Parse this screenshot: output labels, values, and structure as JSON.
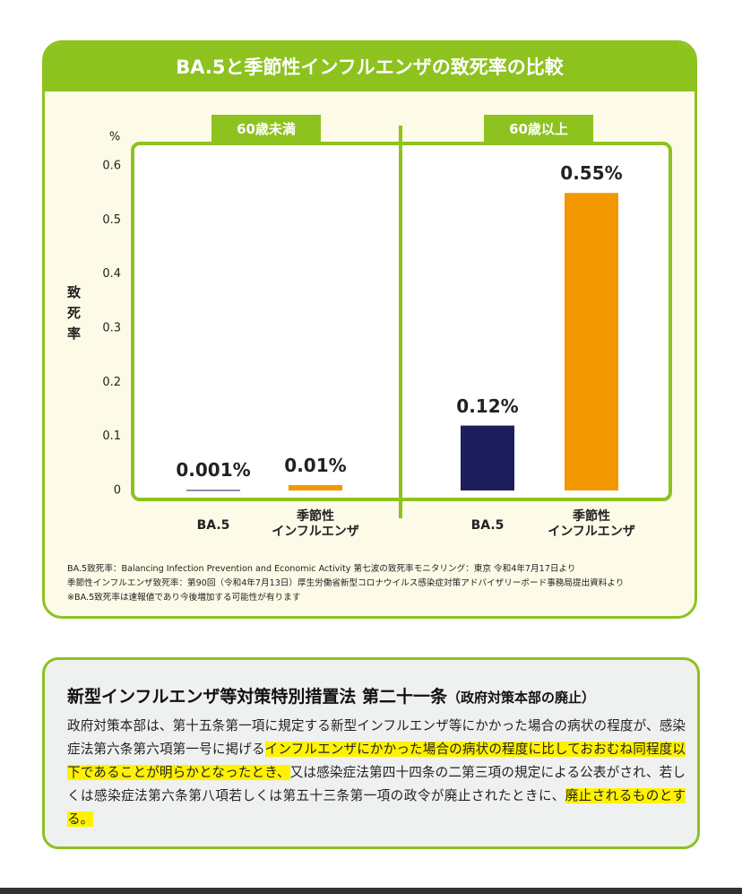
{
  "chart_data": {
    "type": "bar",
    "title": "BA.5と季節性インフルエンザの致死率の比較",
    "y_label": "致死率",
    "y_unit": "%",
    "categories": [
      "60歳未満",
      "60歳以上"
    ],
    "series": [
      {
        "name": "BA.5",
        "color": "#1c1f5c",
        "values": [
          0.001,
          0.12
        ],
        "value_labels": [
          "0.001%",
          "0.12%"
        ]
      },
      {
        "name": "季節性\nインフルエンザ",
        "color": "#f39800",
        "values": [
          0.01,
          0.55
        ],
        "value_labels": [
          "0.01%",
          "0.55%"
        ]
      }
    ],
    "ylim": [
      0,
      0.6
    ],
    "yticks": [
      0,
      0.1,
      0.2,
      0.3,
      0.4,
      0.5,
      0.6
    ],
    "grid": false,
    "notes": [
      "BA.5致死率：Balancing Infection Prevention and Economic Activity 第七波の致死率モニタリング：東京 令和4年7月17日より",
      "季節性インフルエンザ致死率：第90回（令和4年7月13日）厚生労働省新型コロナウイルス感染症対策アドバイザリーボード事務局提出資料より",
      "※BA.5致死率は速報値であり今後増加する可能性が有ります"
    ]
  },
  "law": {
    "title": "新型インフルエンザ等対策特別措置法 第二十一条",
    "subtitle": "（政府対策本部の廃止）",
    "segments": [
      {
        "text": "政府対策本部は、第十五条第一項に規定する新型インフルエンザ等にかかった場合の病状の程度が、感染症法第六条第六項第一号に掲げる",
        "highlight": false
      },
      {
        "text": "インフルエンザにかかった場合の病状の程度に比しておおむね同程度以下であることが明らかとなったとき、",
        "highlight": true
      },
      {
        "text": "又は感染症法第四十四条の二第三項の規定による公表がされ、若しくは感染症法第六条第八項若しくは第五十三条第一項の政令が廃止されたときに、",
        "highlight": false
      },
      {
        "text": "廃止されるものとする。",
        "highlight": true
      }
    ]
  }
}
